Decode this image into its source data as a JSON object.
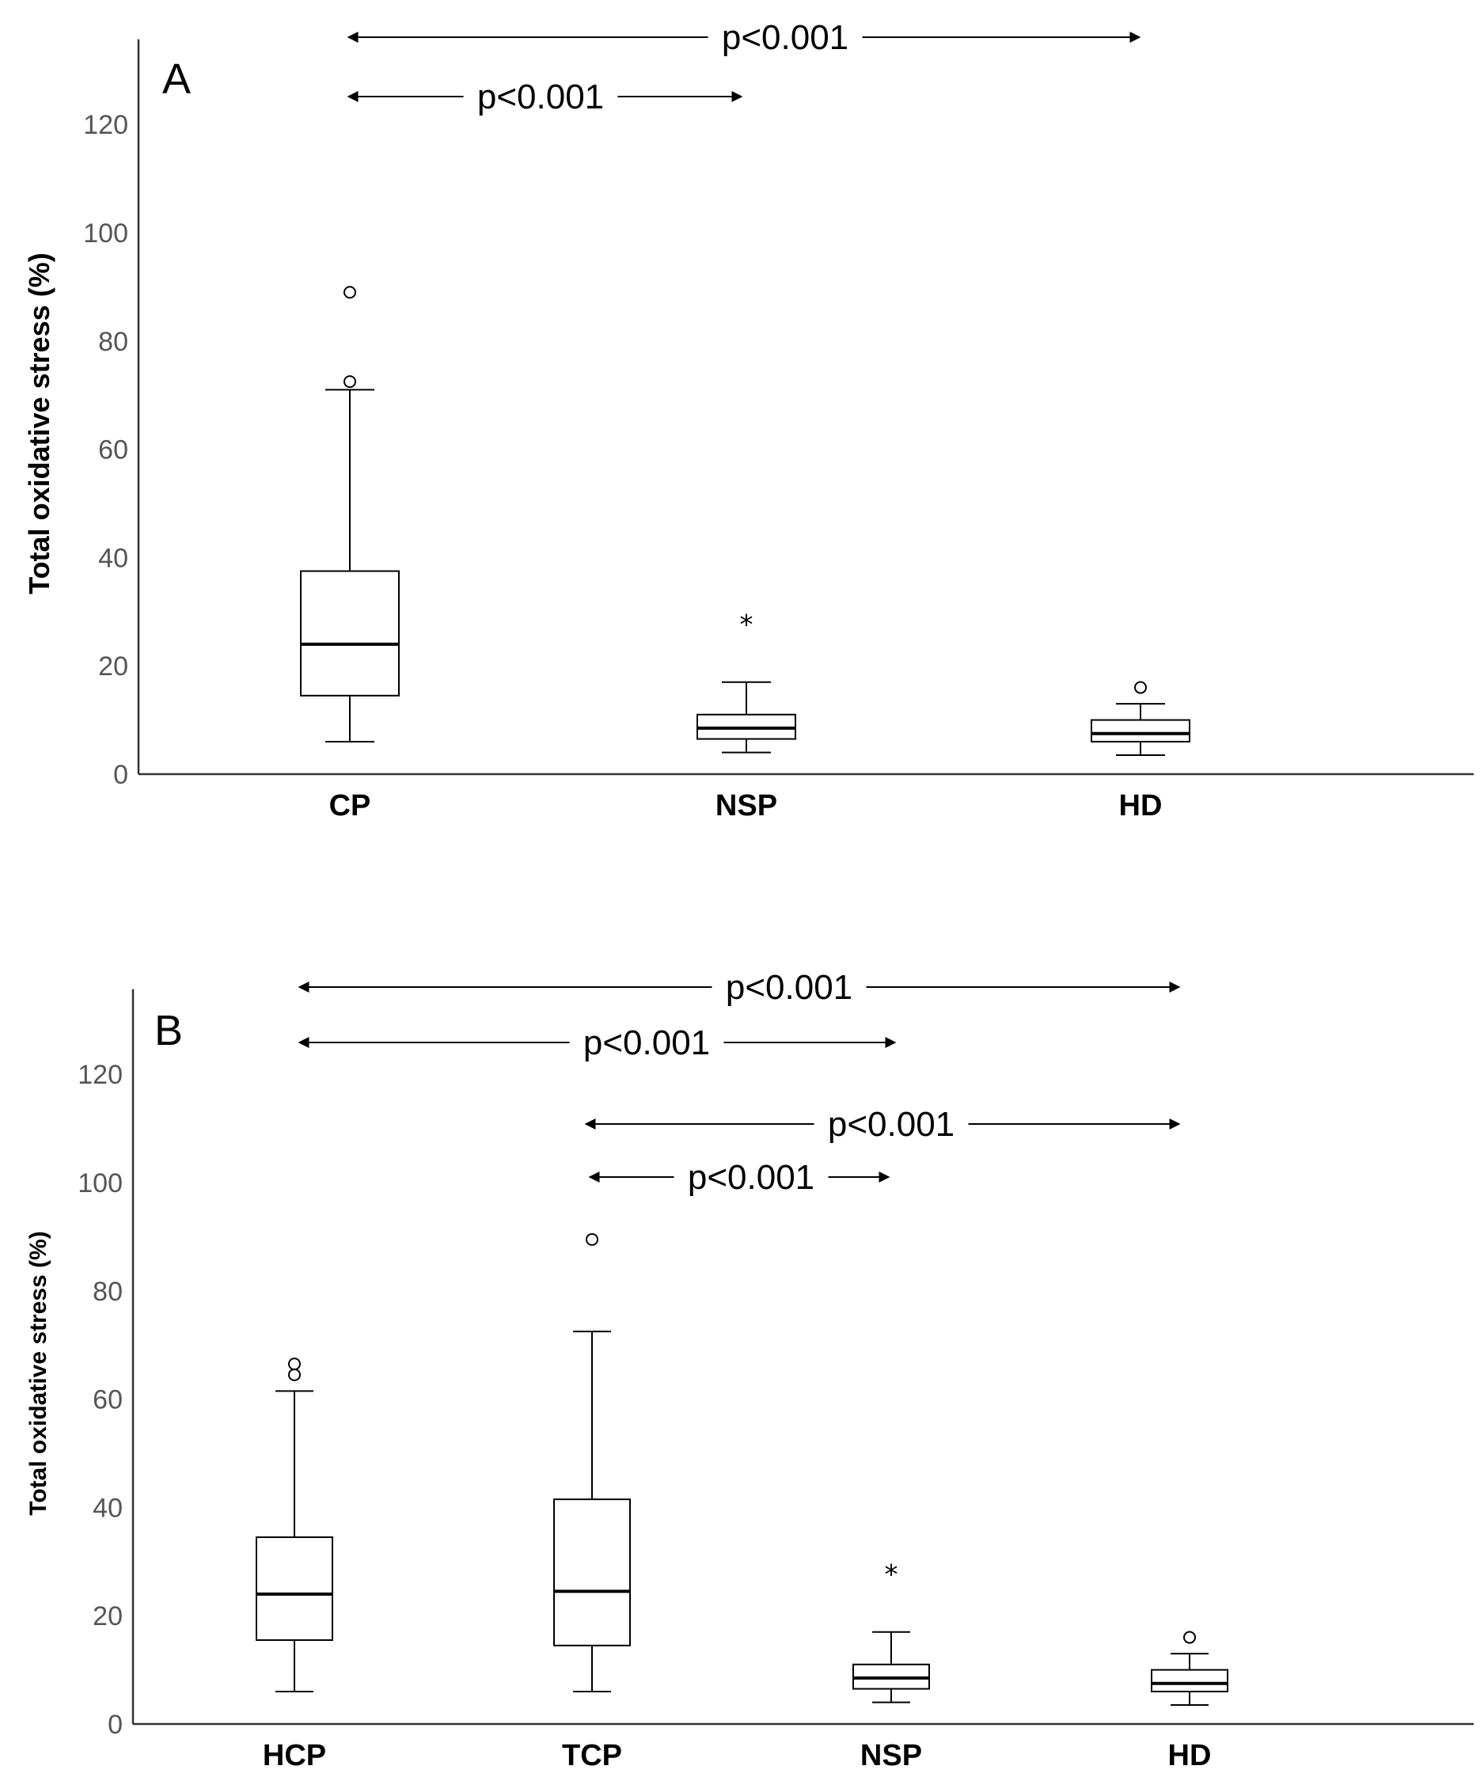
{
  "chart_data": [
    {
      "type": "box",
      "panel": "A",
      "ylabel": "Total oxidative stress (%)",
      "ylim": [
        0,
        135
      ],
      "yticks": [
        0,
        20,
        40,
        60,
        80,
        100,
        120
      ],
      "categories": [
        "CP",
        "NSP",
        "HD"
      ],
      "boxes": [
        {
          "category": "CP",
          "whisker_low": 6,
          "q1": 14.5,
          "median": 24,
          "q3": 37.5,
          "whisker_high": 71,
          "outliers": [
            {
              "value": 89,
              "marker": "circle"
            },
            {
              "value": 72.5,
              "marker": "circle"
            }
          ]
        },
        {
          "category": "NSP",
          "whisker_low": 4,
          "q1": 6.5,
          "median": 8.5,
          "q3": 11,
          "whisker_high": 17,
          "outliers": [
            {
              "value": 28,
              "marker": "star"
            }
          ]
        },
        {
          "category": "HD",
          "whisker_low": 3.5,
          "q1": 6,
          "median": 7.5,
          "q3": 10,
          "whisker_high": 13,
          "outliers": [
            {
              "value": 16,
              "marker": "circle"
            }
          ]
        }
      ],
      "comparisons": [
        {
          "from": "CP",
          "to": "HD",
          "label": "p<0.001"
        },
        {
          "from": "CP",
          "to": "NSP",
          "label": "p<0.001"
        }
      ]
    },
    {
      "type": "box",
      "panel": "B",
      "ylabel": "Total oxidative stress (%)",
      "ylim": [
        0,
        135
      ],
      "yticks": [
        0,
        20,
        40,
        60,
        80,
        100,
        120
      ],
      "categories": [
        "HCP",
        "TCP",
        "NSP",
        "HD"
      ],
      "boxes": [
        {
          "category": "HCP",
          "whisker_low": 6,
          "q1": 15.5,
          "median": 24,
          "q3": 34.5,
          "whisker_high": 61.5,
          "outliers": [
            {
              "value": 66.5,
              "marker": "circle"
            },
            {
              "value": 64.5,
              "marker": "circle"
            }
          ]
        },
        {
          "category": "TCP",
          "whisker_low": 6,
          "q1": 14.5,
          "median": 24.5,
          "q3": 41.5,
          "whisker_high": 72.5,
          "outliers": [
            {
              "value": 89.5,
              "marker": "circle"
            }
          ]
        },
        {
          "category": "NSP",
          "whisker_low": 4,
          "q1": 6.5,
          "median": 8.5,
          "q3": 11,
          "whisker_high": 17,
          "outliers": [
            {
              "value": 28,
              "marker": "star"
            }
          ]
        },
        {
          "category": "HD",
          "whisker_low": 3.5,
          "q1": 6,
          "median": 7.5,
          "q3": 10,
          "whisker_high": 13,
          "outliers": [
            {
              "value": 16,
              "marker": "circle"
            }
          ]
        }
      ],
      "comparisons": [
        {
          "from": "HCP",
          "to": "HD",
          "label": "p<0.001"
        },
        {
          "from": "HCP",
          "to": "NSP",
          "label": "p<0.001"
        },
        {
          "from": "TCP",
          "to": "HD",
          "label": "p<0.001"
        },
        {
          "from": "TCP",
          "to": "NSP",
          "label": "p<0.001"
        }
      ]
    }
  ]
}
